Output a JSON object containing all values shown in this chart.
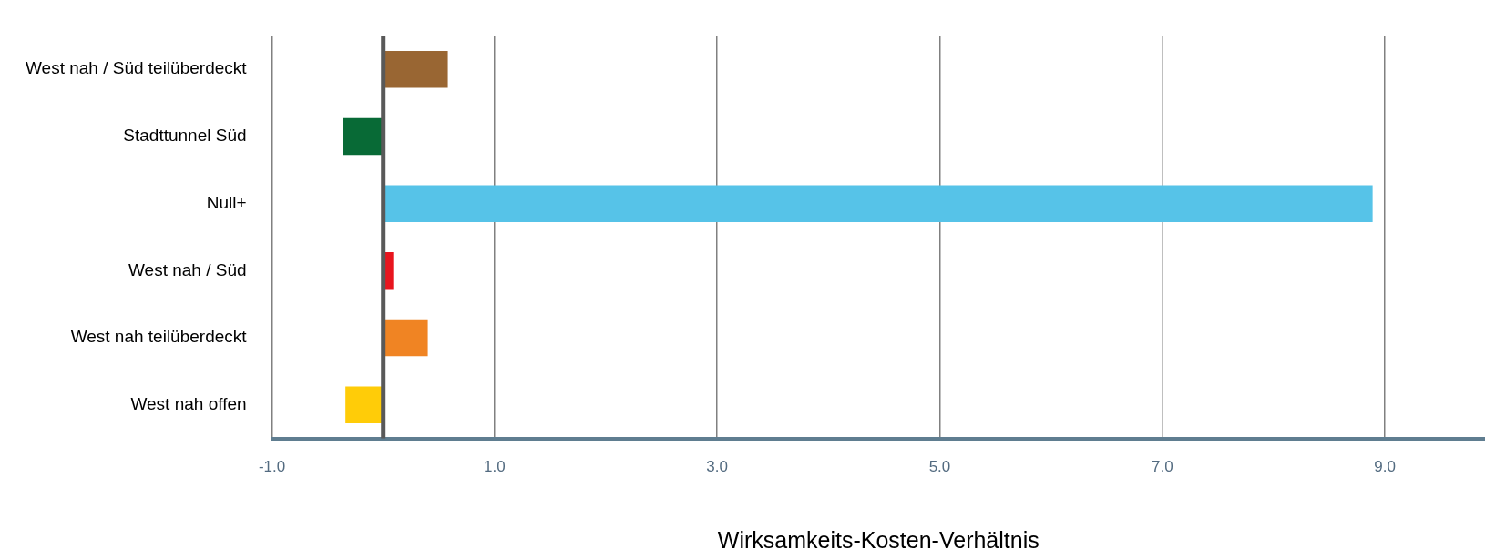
{
  "chart_data": {
    "type": "bar",
    "orientation": "horizontal",
    "xlabel": "Wirksamkeits-Kosten-Verhältnis",
    "categories": [
      "West nah / Süd teilüberdeckt",
      "Stadttunnel Süd",
      "Null+",
      "West nah / Süd",
      "West nah teilüberdeckt",
      "West nah offen"
    ],
    "values": [
      0.58,
      -0.36,
      8.89,
      0.09,
      0.4,
      -0.34
    ],
    "colors": [
      "#996633",
      "#086a36",
      "#56c3e8",
      "#e8151e",
      "#f08423",
      "#ffcc08"
    ],
    "xlim": [
      -1,
      9.9
    ],
    "xticks": [
      {
        "value": -1,
        "label": "-1.0"
      },
      {
        "value": 1,
        "label": "1.0"
      },
      {
        "value": 3,
        "label": "3.0"
      },
      {
        "value": 5,
        "label": "5.0"
      },
      {
        "value": 7,
        "label": "7.0"
      },
      {
        "value": 9,
        "label": "9.0"
      }
    ],
    "grid": "x",
    "legend": false,
    "ref_lines": [
      {
        "axis": "x",
        "value": 0,
        "color": "#595959"
      }
    ]
  }
}
